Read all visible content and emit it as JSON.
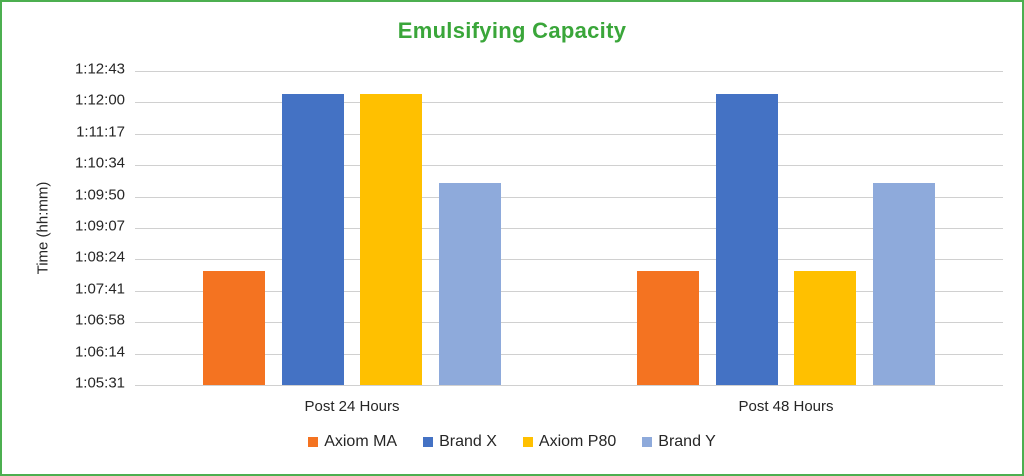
{
  "chart_data": {
    "type": "bar",
    "title": "Emulsifying Capacity",
    "xlabel": "",
    "ylabel": "Time (hh:mm)",
    "categories": [
      "Post 24 Hours",
      "Post 48 Hours"
    ],
    "series": [
      {
        "name": "Axiom MA",
        "color": "#f47321",
        "values": [
          "1:08:08",
          "1:08:08"
        ]
      },
      {
        "name": "Brand X",
        "color": "#4472c4",
        "values": [
          "1:12:11",
          "1:12:11"
        ]
      },
      {
        "name": "Axiom P80",
        "color": "#ffc000",
        "values": [
          "1:12:11",
          "1:08:08"
        ]
      },
      {
        "name": "Brand Y",
        "color": "#8eaadb",
        "values": [
          "1:10:09",
          "1:10:09"
        ]
      }
    ],
    "y_ticks": [
      "1:05:31",
      "1:06:14",
      "1:06:58",
      "1:07:41",
      "1:08:24",
      "1:09:07",
      "1:09:50",
      "1:10:34",
      "1:11:17",
      "1:12:00",
      "1:12:43"
    ],
    "ylim": [
      "1:05:31",
      "1:12:43"
    ],
    "grid": true,
    "legend_position": "bottom"
  },
  "frame": {
    "border_color": "#4caf50",
    "title_color": "#3aa63a"
  }
}
